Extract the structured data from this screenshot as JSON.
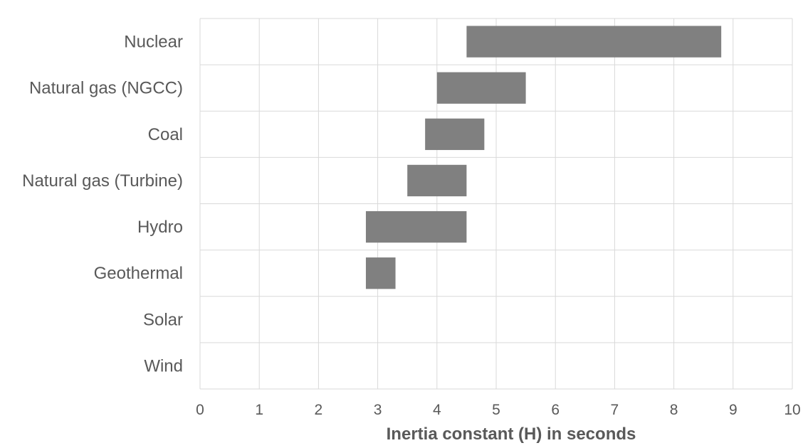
{
  "chart_data": {
    "type": "bar",
    "orientation": "horizontal",
    "subtype": "floating-range",
    "title": "",
    "xlabel": "Inertia constant (H) in seconds",
    "ylabel": "",
    "xlim": [
      0,
      10
    ],
    "xticks": [
      "0",
      "1",
      "2",
      "3",
      "4",
      "5",
      "6",
      "7",
      "8",
      "9",
      "10"
    ],
    "grid": true,
    "legend": "none",
    "bar_color": "#808080",
    "categories": [
      "Nuclear",
      "Natural gas (NGCC)",
      "Coal",
      "Natural gas (Turbine)",
      "Hydro",
      "Geothermal",
      "Solar",
      "Wind"
    ],
    "ranges": [
      [
        4.5,
        8.8
      ],
      [
        4.0,
        5.5
      ],
      [
        3.8,
        4.8
      ],
      [
        3.5,
        4.5
      ],
      [
        2.8,
        4.5
      ],
      [
        2.8,
        3.3
      ],
      null,
      null
    ]
  }
}
